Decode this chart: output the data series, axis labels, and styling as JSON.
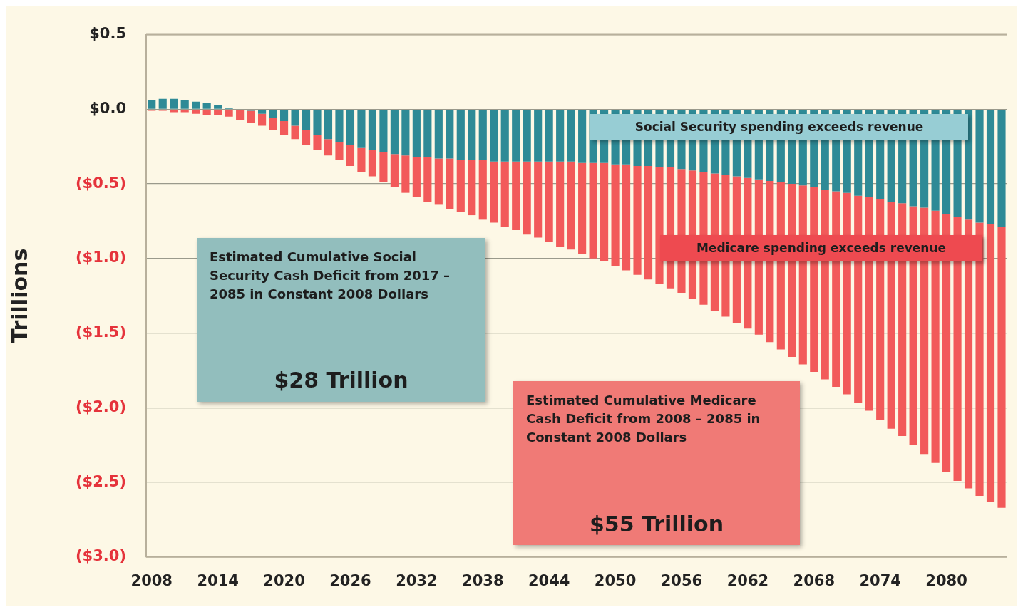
{
  "chart_data": {
    "type": "bar",
    "stacked": true,
    "ylabel": "Trillions",
    "categories": [
      "2008",
      null,
      null,
      null,
      null,
      null,
      "2014",
      null,
      null,
      null,
      null,
      null,
      "2020",
      null,
      null,
      null,
      null,
      null,
      "2026",
      null,
      null,
      null,
      null,
      null,
      "2032",
      null,
      null,
      null,
      null,
      null,
      "2038",
      null,
      null,
      null,
      null,
      null,
      "2044",
      null,
      null,
      null,
      null,
      null,
      "2050",
      null,
      null,
      null,
      null,
      null,
      "2056",
      null,
      null,
      null,
      null,
      null,
      "2062",
      null,
      null,
      null,
      null,
      null,
      "2068",
      null,
      null,
      null,
      null,
      null,
      "2074",
      null,
      null,
      null,
      null,
      null,
      "2080",
      null,
      null,
      null,
      null,
      null
    ],
    "series": [
      {
        "color": "#2e8a96",
        "values": [
          0.06,
          0.07,
          0.07,
          0.06,
          0.05,
          0.04,
          0.03,
          0.01,
          0.0,
          -0.01,
          -0.03,
          -0.06,
          -0.08,
          -0.11,
          -0.14,
          -0.17,
          -0.2,
          -0.22,
          -0.24,
          -0.26,
          -0.27,
          -0.29,
          -0.3,
          -0.31,
          -0.32,
          -0.32,
          -0.33,
          -0.33,
          -0.34,
          -0.34,
          -0.34,
          -0.35,
          -0.35,
          -0.35,
          -0.35,
          -0.35,
          -0.35,
          -0.35,
          -0.35,
          -0.36,
          -0.36,
          -0.36,
          -0.37,
          -0.37,
          -0.38,
          -0.38,
          -0.39,
          -0.39,
          -0.4,
          -0.41,
          -0.42,
          -0.43,
          -0.44,
          -0.45,
          -0.46,
          -0.47,
          -0.48,
          -0.49,
          -0.5,
          -0.51,
          -0.52,
          -0.54,
          -0.55,
          -0.56,
          -0.58,
          -0.59,
          -0.6,
          -0.62,
          -0.63,
          -0.65,
          -0.66,
          -0.68,
          -0.7,
          -0.72,
          -0.74,
          -0.76,
          -0.77,
          -0.79
        ]
      },
      {
        "color": "#f25a5a",
        "values": [
          -0.01,
          -0.01,
          -0.02,
          -0.02,
          -0.03,
          -0.04,
          -0.04,
          -0.05,
          -0.07,
          -0.08,
          -0.08,
          -0.08,
          -0.09,
          -0.09,
          -0.1,
          -0.1,
          -0.11,
          -0.12,
          -0.14,
          -0.16,
          -0.18,
          -0.2,
          -0.22,
          -0.25,
          -0.27,
          -0.3,
          -0.31,
          -0.34,
          -0.35,
          -0.37,
          -0.4,
          -0.41,
          -0.44,
          -0.46,
          -0.49,
          -0.51,
          -0.54,
          -0.57,
          -0.59,
          -0.61,
          -0.64,
          -0.66,
          -0.68,
          -0.71,
          -0.73,
          -0.76,
          -0.78,
          -0.81,
          -0.83,
          -0.86,
          -0.89,
          -0.92,
          -0.95,
          -0.98,
          -1.01,
          -1.04,
          -1.08,
          -1.12,
          -1.16,
          -1.2,
          -1.24,
          -1.27,
          -1.31,
          -1.35,
          -1.39,
          -1.43,
          -1.48,
          -1.52,
          -1.56,
          -1.6,
          -1.65,
          -1.69,
          -1.73,
          -1.77,
          -1.8,
          -1.83,
          -1.86,
          -1.88
        ]
      }
    ],
    "ylim": [
      -3,
      0.5
    ],
    "yticks": [
      {
        "value": 0.5,
        "label": "$0.5"
      },
      {
        "value": 0,
        "label": "$0.0"
      },
      {
        "value": -0.5,
        "label": "($0.5)"
      },
      {
        "value": -1,
        "label": "($1.0)"
      },
      {
        "value": -1.5,
        "label": "($1.5)"
      },
      {
        "value": -2,
        "label": "($2.0)"
      },
      {
        "value": -2.5,
        "label": "($2.5)"
      },
      {
        "value": -3,
        "label": "($3.0)"
      }
    ],
    "grid": "y",
    "legend": false,
    "annotations": [
      "Social Security spending exceeds revenue",
      "Medicare spending exceeds revenue",
      "Estimated Cumulative Social Security Cash Deficit from 2017 – 2085 in Constant 2008 Dollars",
      "$28 Trillion",
      "Estimated Cumulative Medicare Cash Deficit from 2008 – 2085 in Constant 2008 Dollars",
      "$55 Trillion"
    ]
  }
}
